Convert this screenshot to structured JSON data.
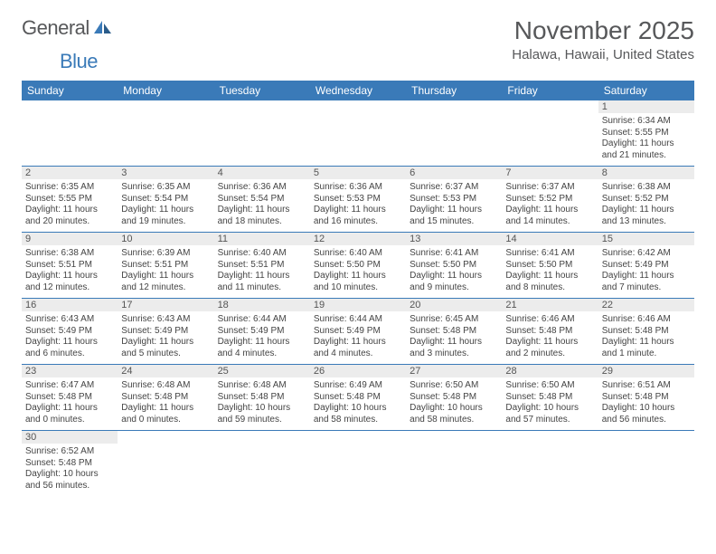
{
  "logo": {
    "text1": "General",
    "text2": "Blue"
  },
  "title": "November 2025",
  "location": "Halawa, Hawaii, United States",
  "header_bg": "#3a7ab8",
  "daynum_bg": "#ececec",
  "day_names": [
    "Sunday",
    "Monday",
    "Tuesday",
    "Wednesday",
    "Thursday",
    "Friday",
    "Saturday"
  ],
  "weeks": [
    [
      null,
      null,
      null,
      null,
      null,
      null,
      {
        "d": "1",
        "sr": "Sunrise: 6:34 AM",
        "ss": "Sunset: 5:55 PM",
        "dl1": "Daylight: 11 hours",
        "dl2": "and 21 minutes."
      }
    ],
    [
      {
        "d": "2",
        "sr": "Sunrise: 6:35 AM",
        "ss": "Sunset: 5:55 PM",
        "dl1": "Daylight: 11 hours",
        "dl2": "and 20 minutes."
      },
      {
        "d": "3",
        "sr": "Sunrise: 6:35 AM",
        "ss": "Sunset: 5:54 PM",
        "dl1": "Daylight: 11 hours",
        "dl2": "and 19 minutes."
      },
      {
        "d": "4",
        "sr": "Sunrise: 6:36 AM",
        "ss": "Sunset: 5:54 PM",
        "dl1": "Daylight: 11 hours",
        "dl2": "and 18 minutes."
      },
      {
        "d": "5",
        "sr": "Sunrise: 6:36 AM",
        "ss": "Sunset: 5:53 PM",
        "dl1": "Daylight: 11 hours",
        "dl2": "and 16 minutes."
      },
      {
        "d": "6",
        "sr": "Sunrise: 6:37 AM",
        "ss": "Sunset: 5:53 PM",
        "dl1": "Daylight: 11 hours",
        "dl2": "and 15 minutes."
      },
      {
        "d": "7",
        "sr": "Sunrise: 6:37 AM",
        "ss": "Sunset: 5:52 PM",
        "dl1": "Daylight: 11 hours",
        "dl2": "and 14 minutes."
      },
      {
        "d": "8",
        "sr": "Sunrise: 6:38 AM",
        "ss": "Sunset: 5:52 PM",
        "dl1": "Daylight: 11 hours",
        "dl2": "and 13 minutes."
      }
    ],
    [
      {
        "d": "9",
        "sr": "Sunrise: 6:38 AM",
        "ss": "Sunset: 5:51 PM",
        "dl1": "Daylight: 11 hours",
        "dl2": "and 12 minutes."
      },
      {
        "d": "10",
        "sr": "Sunrise: 6:39 AM",
        "ss": "Sunset: 5:51 PM",
        "dl1": "Daylight: 11 hours",
        "dl2": "and 12 minutes."
      },
      {
        "d": "11",
        "sr": "Sunrise: 6:40 AM",
        "ss": "Sunset: 5:51 PM",
        "dl1": "Daylight: 11 hours",
        "dl2": "and 11 minutes."
      },
      {
        "d": "12",
        "sr": "Sunrise: 6:40 AM",
        "ss": "Sunset: 5:50 PM",
        "dl1": "Daylight: 11 hours",
        "dl2": "and 10 minutes."
      },
      {
        "d": "13",
        "sr": "Sunrise: 6:41 AM",
        "ss": "Sunset: 5:50 PM",
        "dl1": "Daylight: 11 hours",
        "dl2": "and 9 minutes."
      },
      {
        "d": "14",
        "sr": "Sunrise: 6:41 AM",
        "ss": "Sunset: 5:50 PM",
        "dl1": "Daylight: 11 hours",
        "dl2": "and 8 minutes."
      },
      {
        "d": "15",
        "sr": "Sunrise: 6:42 AM",
        "ss": "Sunset: 5:49 PM",
        "dl1": "Daylight: 11 hours",
        "dl2": "and 7 minutes."
      }
    ],
    [
      {
        "d": "16",
        "sr": "Sunrise: 6:43 AM",
        "ss": "Sunset: 5:49 PM",
        "dl1": "Daylight: 11 hours",
        "dl2": "and 6 minutes."
      },
      {
        "d": "17",
        "sr": "Sunrise: 6:43 AM",
        "ss": "Sunset: 5:49 PM",
        "dl1": "Daylight: 11 hours",
        "dl2": "and 5 minutes."
      },
      {
        "d": "18",
        "sr": "Sunrise: 6:44 AM",
        "ss": "Sunset: 5:49 PM",
        "dl1": "Daylight: 11 hours",
        "dl2": "and 4 minutes."
      },
      {
        "d": "19",
        "sr": "Sunrise: 6:44 AM",
        "ss": "Sunset: 5:49 PM",
        "dl1": "Daylight: 11 hours",
        "dl2": "and 4 minutes."
      },
      {
        "d": "20",
        "sr": "Sunrise: 6:45 AM",
        "ss": "Sunset: 5:48 PM",
        "dl1": "Daylight: 11 hours",
        "dl2": "and 3 minutes."
      },
      {
        "d": "21",
        "sr": "Sunrise: 6:46 AM",
        "ss": "Sunset: 5:48 PM",
        "dl1": "Daylight: 11 hours",
        "dl2": "and 2 minutes."
      },
      {
        "d": "22",
        "sr": "Sunrise: 6:46 AM",
        "ss": "Sunset: 5:48 PM",
        "dl1": "Daylight: 11 hours",
        "dl2": "and 1 minute."
      }
    ],
    [
      {
        "d": "23",
        "sr": "Sunrise: 6:47 AM",
        "ss": "Sunset: 5:48 PM",
        "dl1": "Daylight: 11 hours",
        "dl2": "and 0 minutes."
      },
      {
        "d": "24",
        "sr": "Sunrise: 6:48 AM",
        "ss": "Sunset: 5:48 PM",
        "dl1": "Daylight: 11 hours",
        "dl2": "and 0 minutes."
      },
      {
        "d": "25",
        "sr": "Sunrise: 6:48 AM",
        "ss": "Sunset: 5:48 PM",
        "dl1": "Daylight: 10 hours",
        "dl2": "and 59 minutes."
      },
      {
        "d": "26",
        "sr": "Sunrise: 6:49 AM",
        "ss": "Sunset: 5:48 PM",
        "dl1": "Daylight: 10 hours",
        "dl2": "and 58 minutes."
      },
      {
        "d": "27",
        "sr": "Sunrise: 6:50 AM",
        "ss": "Sunset: 5:48 PM",
        "dl1": "Daylight: 10 hours",
        "dl2": "and 58 minutes."
      },
      {
        "d": "28",
        "sr": "Sunrise: 6:50 AM",
        "ss": "Sunset: 5:48 PM",
        "dl1": "Daylight: 10 hours",
        "dl2": "and 57 minutes."
      },
      {
        "d": "29",
        "sr": "Sunrise: 6:51 AM",
        "ss": "Sunset: 5:48 PM",
        "dl1": "Daylight: 10 hours",
        "dl2": "and 56 minutes."
      }
    ],
    [
      {
        "d": "30",
        "sr": "Sunrise: 6:52 AM",
        "ss": "Sunset: 5:48 PM",
        "dl1": "Daylight: 10 hours",
        "dl2": "and 56 minutes."
      },
      null,
      null,
      null,
      null,
      null,
      null
    ]
  ]
}
